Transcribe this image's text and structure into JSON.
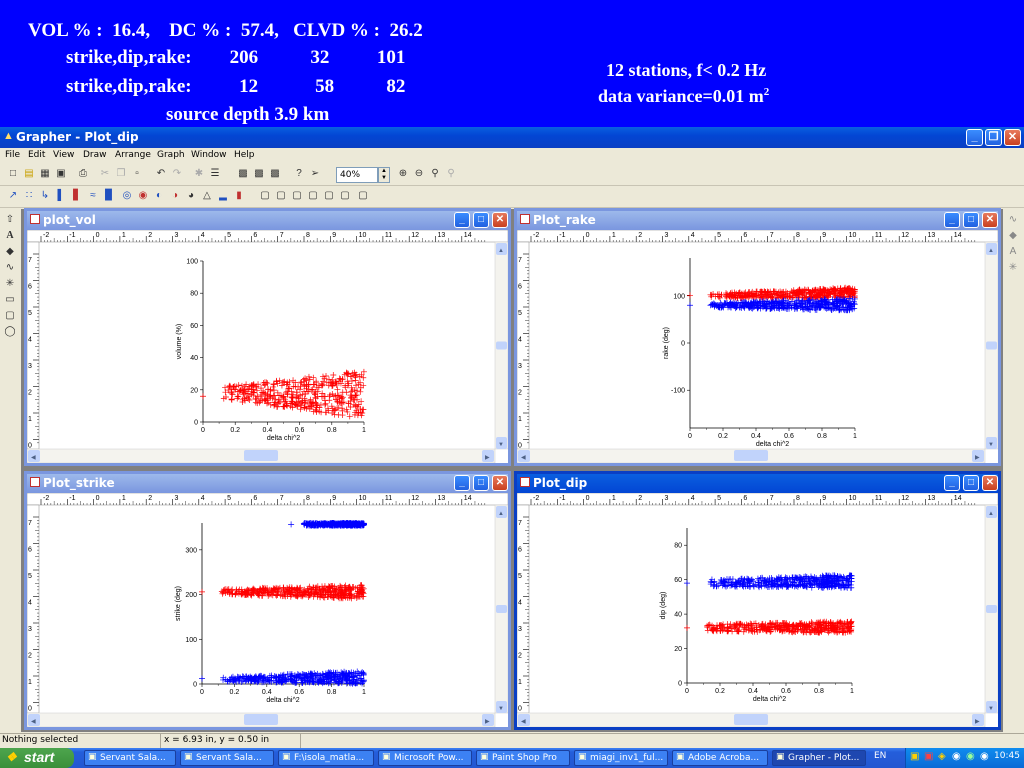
{
  "header": {
    "line1": "VOL % :  16.4,    DC % :  57.4,   CLVD % :  26.2",
    "line2": "strike,dip,rake:        206           32          101",
    "line3": "strike,dip,rake:          12            58           82",
    "line4": "source depth 3.9 km",
    "right1": "12 stations, f< 0.2 Hz",
    "right2_text": "data variance=0.01 m",
    "right2_sup": "2"
  },
  "app": {
    "title": "Grapher - Plot_dip",
    "menu": [
      "File",
      "Edit",
      "View",
      "Draw",
      "Arrange",
      "Graph",
      "Window",
      "Help"
    ],
    "zoom_value": "40%"
  },
  "windows": [
    {
      "title": "plot_vol",
      "active": false
    },
    {
      "title": "Plot_rake",
      "active": false
    },
    {
      "title": "Plot_strike",
      "active": false
    },
    {
      "title": "Plot_dip",
      "active": true
    }
  ],
  "ruler_labels": [
    "-2",
    "-1",
    "0",
    "1",
    "2",
    "3",
    "4",
    "5",
    "6",
    "7",
    "8",
    "9",
    "10",
    "11",
    "12",
    "13",
    "14"
  ],
  "vruler_labels": [
    "7",
    "6",
    "5",
    "4",
    "3",
    "2",
    "1",
    "0"
  ],
  "chart_data": [
    {
      "type": "scatter",
      "title": "",
      "xlabel": "delta chi^2",
      "ylabel": "volume (%)",
      "xlim": [
        0,
        1
      ],
      "ylim": [
        0,
        100
      ],
      "xticks": [
        "0",
        "0.2",
        "0.4",
        "0.6",
        "0.8",
        "1"
      ],
      "yticks": [
        "0",
        "20",
        "40",
        "60",
        "80",
        "100"
      ],
      "series": [
        {
          "color": "#ff0000",
          "x_range": [
            0.12,
            1.0
          ],
          "y_min": [
            14,
            2
          ],
          "y_max": [
            22,
            32
          ],
          "outlier": [
            0.0,
            16
          ]
        }
      ]
    },
    {
      "type": "scatter",
      "title": "",
      "xlabel": "delta chi^2",
      "ylabel": "rake (deg)",
      "xlim": [
        0,
        1
      ],
      "ylim": [
        -180,
        180
      ],
      "xticks": [
        "0",
        "0.2",
        "0.4",
        "0.6",
        "0.8",
        "1"
      ],
      "yticks": [
        "-100",
        "0",
        "100"
      ],
      "series": [
        {
          "color": "#ff0000",
          "x_range": [
            0.12,
            1.0
          ],
          "y_min": [
            95,
            95
          ],
          "y_max": [
            105,
            118
          ],
          "outlier": [
            0.0,
            101
          ]
        },
        {
          "color": "#0000ff",
          "x_range": [
            0.12,
            1.0
          ],
          "y_min": [
            75,
            68
          ],
          "y_max": [
            85,
            95
          ],
          "outlier": [
            0.0,
            80
          ]
        }
      ]
    },
    {
      "type": "scatter",
      "title": "",
      "xlabel": "delta chi^2",
      "ylabel": "strike (deg)",
      "xlim": [
        0,
        1
      ],
      "ylim": [
        0,
        360
      ],
      "xticks": [
        "0",
        "0.2",
        "0.4",
        "0.6",
        "0.8",
        "1"
      ],
      "yticks": [
        "0",
        "100",
        "200",
        "300"
      ],
      "series": [
        {
          "color": "#ff0000",
          "x_range": [
            0.12,
            1.0
          ],
          "y_min": [
            200,
            190
          ],
          "y_max": [
            212,
            222
          ],
          "outlier": [
            0.0,
            206
          ]
        },
        {
          "color": "#0000ff",
          "x_range": [
            0.12,
            1.0
          ],
          "y_min": [
            5,
            0
          ],
          "y_max": [
            15,
            30
          ],
          "outlier": [
            0.0,
            12
          ]
        },
        {
          "color": "#0000ff",
          "x_range": [
            0.62,
            1.0
          ],
          "y_min": [
            354,
            354
          ],
          "y_max": [
            360,
            360
          ],
          "outlier": [
            0.55,
            357
          ]
        }
      ]
    },
    {
      "type": "scatter",
      "title": "",
      "xlabel": "delta chi^2",
      "ylabel": "dip (deg)",
      "xlim": [
        0,
        1
      ],
      "ylim": [
        0,
        90
      ],
      "xticks": [
        "0",
        "0.2",
        "0.4",
        "0.6",
        "0.8",
        "1"
      ],
      "yticks": [
        "0",
        "20",
        "40",
        "60",
        "80"
      ],
      "series": [
        {
          "color": "#0000ff",
          "x_range": [
            0.12,
            1.0
          ],
          "y_min": [
            56,
            55
          ],
          "y_max": [
            60,
            63
          ],
          "outlier": [
            0.0,
            58
          ]
        },
        {
          "color": "#ff0000",
          "x_range": [
            0.12,
            1.0
          ],
          "y_min": [
            30,
            29
          ],
          "y_max": [
            34,
            36
          ],
          "outlier": [
            0.0,
            32
          ]
        }
      ]
    }
  ],
  "status": {
    "left": "Nothing selected",
    "coords": "x = 6.93 in, y = 0.50 in"
  },
  "taskbar": {
    "start": "start",
    "items": [
      "Servant Sala...",
      "Servant Sala...",
      "F:\\isola_matla...",
      "Microsoft Pow...",
      "Paint Shop Pro",
      "miagi_inv1_ful...",
      "Adobe Acroba...",
      "Grapher - Plot..."
    ],
    "lang": "EN",
    "clock": "10:45"
  }
}
